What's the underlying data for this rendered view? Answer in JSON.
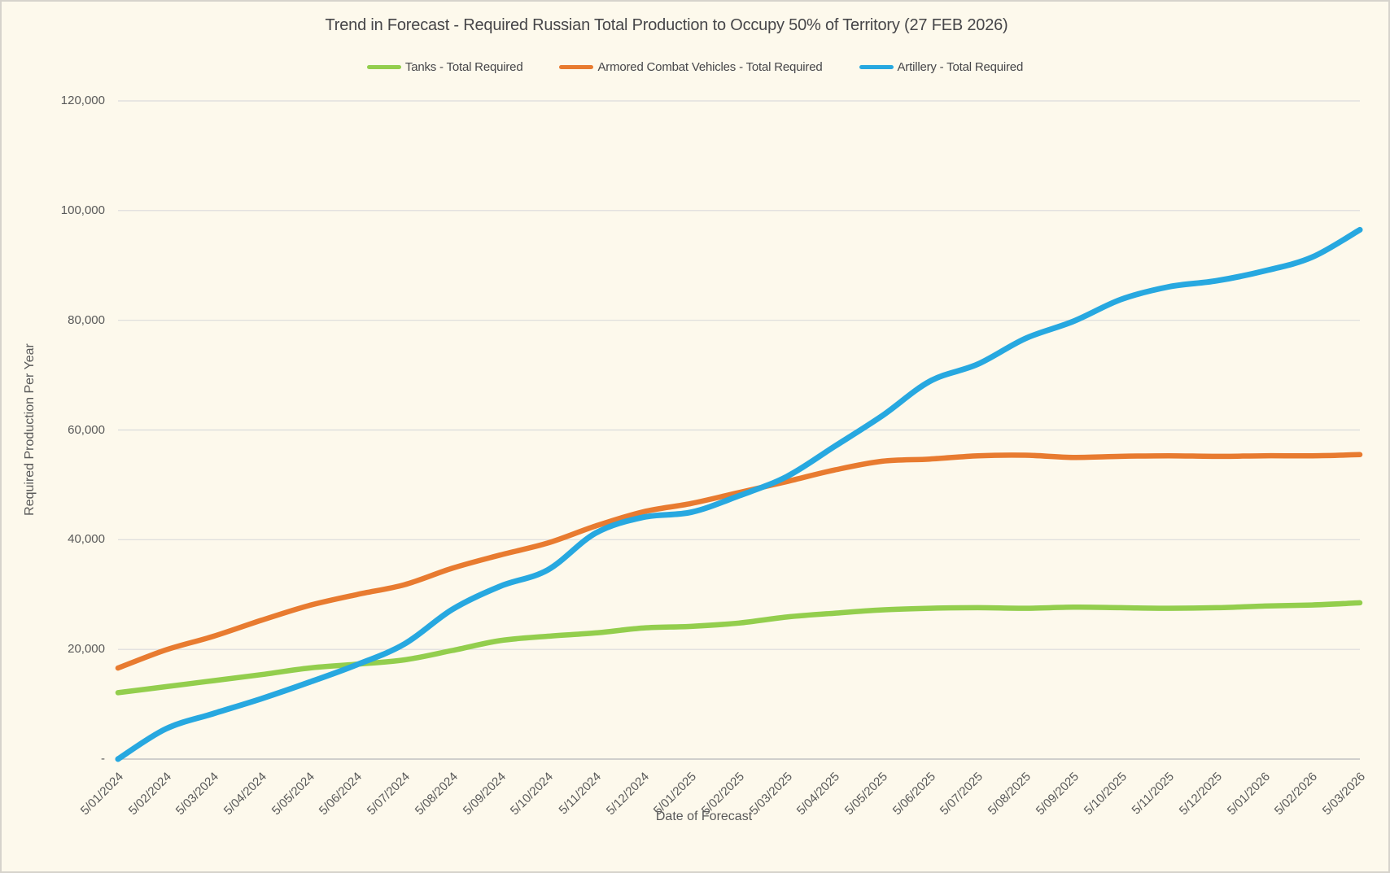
{
  "chart_data": {
    "type": "line",
    "title": "Trend in Forecast - Required Russian Total Production to Occupy 50% of Territory (27 FEB 2026)",
    "xlabel": "Date of Forecast",
    "ylabel": "Required Production Per Year",
    "ylim": [
      0,
      120000
    ],
    "grid": true,
    "legend_position": "top",
    "yticks": [
      {
        "label": "120,000",
        "value": 120000
      },
      {
        "label": "100,000",
        "value": 100000
      },
      {
        "label": "80,000",
        "value": 80000
      },
      {
        "label": "60,000",
        "value": 60000
      },
      {
        "label": "40,000",
        "value": 40000
      },
      {
        "label": "20,000",
        "value": 20000
      },
      {
        "label": "-",
        "value": 0
      }
    ],
    "categories": [
      "5/01/2024",
      "5/02/2024",
      "5/03/2024",
      "5/04/2024",
      "5/05/2024",
      "5/06/2024",
      "5/07/2024",
      "5/08/2024",
      "5/09/2024",
      "5/10/2024",
      "5/11/2024",
      "5/12/2024",
      "5/01/2025",
      "5/02/2025",
      "5/03/2025",
      "5/04/2025",
      "5/05/2025",
      "5/06/2025",
      "5/07/2025",
      "5/08/2025",
      "5/09/2025",
      "5/10/2025",
      "5/11/2025",
      "5/12/2025",
      "5/01/2026",
      "5/02/2026",
      "5/03/2026"
    ],
    "series": [
      {
        "name": "Tanks - Total Required",
        "color": "#93CE4D",
        "line_width": 6.5,
        "values": [
          12100,
          13200,
          14300,
          15400,
          16600,
          17300,
          18100,
          19800,
          21600,
          22400,
          23000,
          23900,
          24200,
          24800,
          25900,
          26600,
          27200,
          27500,
          27600,
          27500,
          27700,
          27600,
          27500,
          27600,
          27900,
          28100,
          28500
        ]
      },
      {
        "name": "Armored Combat Vehicles - Total Required",
        "color": "#E87B30",
        "line_width": 6.5,
        "values": [
          16600,
          19900,
          22400,
          25300,
          28000,
          30000,
          31800,
          34800,
          37200,
          39400,
          42500,
          45100,
          46600,
          48600,
          50600,
          52700,
          54300,
          54700,
          55300,
          55400,
          55000,
          55200,
          55300,
          55200,
          55300,
          55300,
          55500
        ]
      },
      {
        "name": "Artillery - Total Required",
        "color": "#27A8E0",
        "line_width": 7,
        "values": [
          0,
          5500,
          8300,
          11000,
          14000,
          17200,
          21000,
          27300,
          31500,
          34500,
          41200,
          44100,
          45000,
          48000,
          51500,
          57000,
          62600,
          68900,
          72000,
          76700,
          79800,
          83800,
          86100,
          87200,
          89000,
          91500,
          96500
        ]
      }
    ]
  },
  "colors": {
    "background": "#FDF9EC",
    "border": "#D6D3CC",
    "gridline": "#DBDBDB",
    "axis_line": "#C1C1C1",
    "title_text": "#464649",
    "axis_text": "#595959"
  }
}
